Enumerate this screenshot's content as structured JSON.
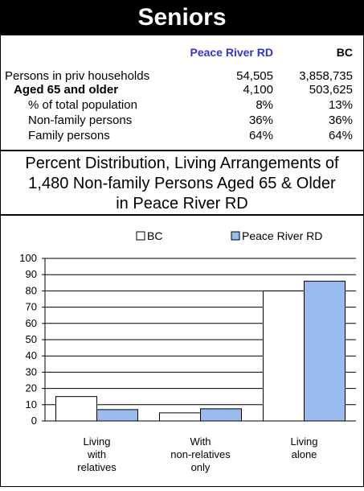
{
  "header": {
    "title": "Seniors"
  },
  "table": {
    "col1_header": "Peace River RD",
    "col2_header": "BC",
    "col1_color": "#3333cc",
    "rows": [
      {
        "label": "Persons in priv households",
        "v1": "54,505",
        "v2": "3,858,735"
      },
      {
        "label": "Aged 65 and older",
        "v1": "4,100",
        "v2": "503,625"
      },
      {
        "label": "% of total population",
        "v1": "8%",
        "v2": "13%"
      },
      {
        "label": "Non-family persons",
        "v1": "36%",
        "v2": "36%"
      },
      {
        "label": "Family persons",
        "v1": "64%",
        "v2": "64%"
      }
    ]
  },
  "chart_title": {
    "line1": "Percent Distribution, Living Arrangements of",
    "line2": "1,480 Non-family Persons Aged 65 & Older",
    "line3": "in Peace River RD"
  },
  "chart_data": {
    "type": "bar",
    "categories": [
      [
        "Living",
        "with",
        "relatives"
      ],
      [
        "With",
        "non-relatives",
        "only"
      ],
      [
        "Living",
        "alone"
      ]
    ],
    "series": [
      {
        "name": "BC",
        "values": [
          15,
          5,
          80
        ],
        "color": "#ffffff"
      },
      {
        "name": "Peace River RD",
        "values": [
          7,
          7.5,
          86
        ],
        "color": "#99bbee"
      }
    ],
    "ylim": [
      0,
      100
    ],
    "yticks": [
      "0",
      "10",
      "20",
      "30",
      "40",
      "50",
      "60",
      "70",
      "80",
      "90",
      "100"
    ],
    "grid": true,
    "legend_position": "top"
  }
}
